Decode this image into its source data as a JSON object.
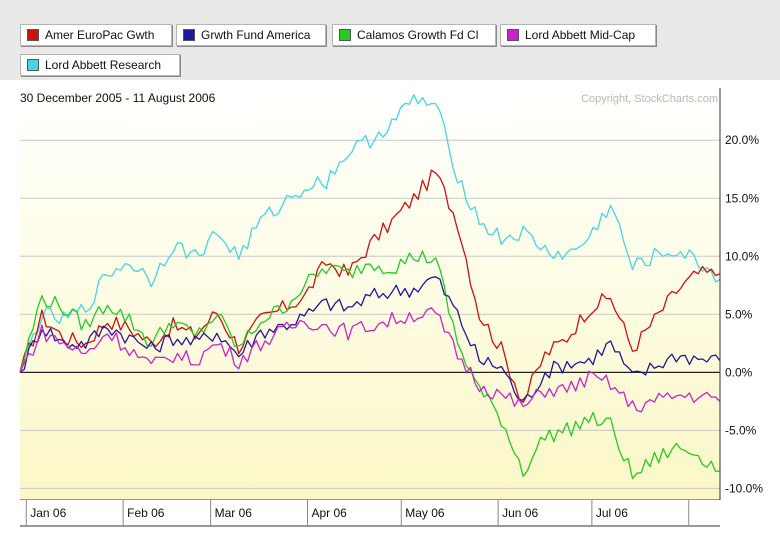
{
  "chart_data": {
    "type": "line",
    "date_range": "30 December 2005 - 11 August 2006",
    "copyright": "Copyright, StockCharts.com",
    "x_tick_labels": [
      "Jan 06",
      "Feb 06",
      "Mar 06",
      "Apr 06",
      "May 06",
      "Jun 06",
      "Jul 06"
    ],
    "y_tick_labels": [
      "20.0%",
      "15.0%",
      "10.0%",
      "5.0%",
      "0.0%",
      "-5.0%",
      "-10.0%"
    ],
    "y_ticks": [
      20,
      15,
      10,
      5,
      0,
      -5,
      -10
    ],
    "ylim": [
      -11,
      24.5
    ],
    "x": [
      "2005-12-30",
      "2006-01-06",
      "2006-01-13",
      "2006-01-20",
      "2006-01-27",
      "2006-02-03",
      "2006-02-10",
      "2006-02-17",
      "2006-02-24",
      "2006-03-03",
      "2006-03-10",
      "2006-03-17",
      "2006-03-24",
      "2006-03-31",
      "2006-04-07",
      "2006-04-14",
      "2006-04-21",
      "2006-04-28",
      "2006-05-05",
      "2006-05-12",
      "2006-05-19",
      "2006-05-26",
      "2006-06-02",
      "2006-06-09",
      "2006-06-16",
      "2006-06-23",
      "2006-06-30",
      "2006-07-07",
      "2006-07-14",
      "2006-07-21",
      "2006-07-28",
      "2006-08-04",
      "2006-08-11"
    ],
    "series": [
      {
        "name": "Amer EuroPac Gwth",
        "color": "#cc1111",
        "values": [
          0,
          4.8,
          3.0,
          2.5,
          4.5,
          3.8,
          2.5,
          4.0,
          3.2,
          5.2,
          2.2,
          4.5,
          5.5,
          6.5,
          9.5,
          8.5,
          11.0,
          13.0,
          15.0,
          17.2,
          13.0,
          5.0,
          2.0,
          -2.5,
          1.5,
          3.0,
          5.5,
          6.5,
          2.0,
          4.5,
          7.0,
          8.5,
          8.5
        ]
      },
      {
        "name": "Grwth Fund America",
        "color": "#22169e",
        "values": [
          0,
          4.0,
          2.5,
          2.5,
          4.0,
          3.0,
          2.0,
          3.0,
          2.5,
          3.5,
          1.5,
          3.5,
          4.0,
          4.8,
          6.0,
          5.5,
          6.5,
          7.0,
          7.2,
          8.2,
          5.0,
          1.0,
          0.5,
          -2.8,
          0.0,
          0.8,
          1.0,
          2.5,
          -0.5,
          0.5,
          1.5,
          1.2,
          1.0
        ]
      },
      {
        "name": "Calamos Growth Fd Cl",
        "color": "#22cc22",
        "values": [
          0,
          6.5,
          5.5,
          4.0,
          6.0,
          4.5,
          2.5,
          4.5,
          3.0,
          5.0,
          2.0,
          4.5,
          5.5,
          7.5,
          9.0,
          8.5,
          9.5,
          9.0,
          10.0,
          9.8,
          2.5,
          -1.5,
          -4.0,
          -8.5,
          -5.5,
          -5.0,
          -4.0,
          -4.5,
          -9.0,
          -7.5,
          -6.5,
          -7.0,
          -8.5
        ]
      },
      {
        "name": "Lord Abbett Mid-Cap",
        "color": "#cc22cc",
        "values": [
          0,
          3.5,
          2.5,
          1.5,
          3.5,
          2.0,
          0.5,
          1.5,
          1.0,
          2.5,
          1.0,
          2.5,
          3.5,
          4.5,
          4.0,
          3.5,
          4.0,
          4.5,
          5.0,
          5.0,
          1.5,
          -1.0,
          -2.0,
          -3.0,
          -1.5,
          -1.5,
          -0.5,
          -1.0,
          -3.0,
          -2.5,
          -2.0,
          -2.0,
          -2.5
        ]
      },
      {
        "name": "Lord Abbett Research",
        "color": "#44d6e2",
        "values": [
          0,
          5.0,
          4.5,
          5.5,
          8.5,
          9.5,
          8.0,
          11.0,
          10.0,
          12.0,
          10.0,
          13.0,
          14.5,
          16.0,
          16.5,
          19.0,
          20.0,
          21.5,
          23.5,
          23.0,
          17.0,
          13.0,
          11.5,
          12.0,
          10.5,
          10.0,
          11.5,
          14.5,
          9.0,
          10.0,
          10.5,
          9.5,
          8.0
        ]
      }
    ]
  }
}
